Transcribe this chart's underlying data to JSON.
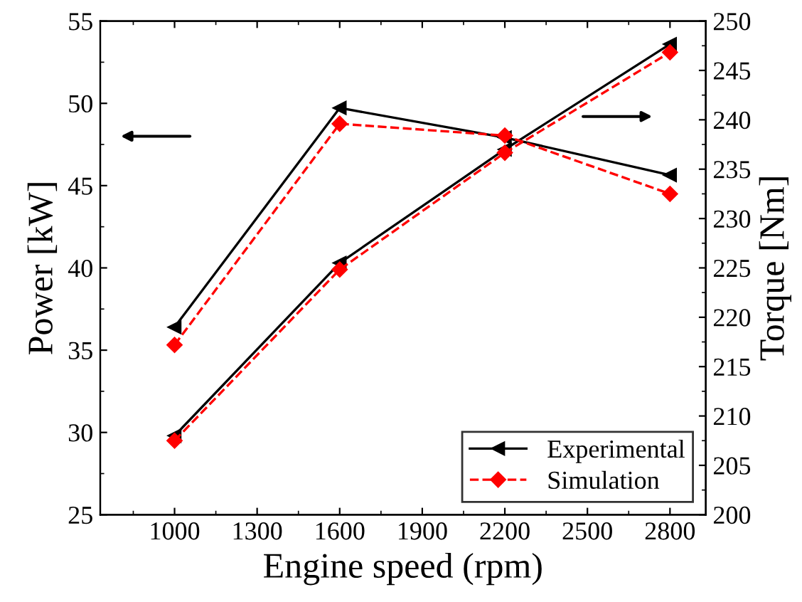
{
  "chart_data": {
    "type": "line",
    "xlabel": "Engine speed (rpm)",
    "ylabel": "Power [kW]",
    "y2label": "Torque [Nm]",
    "x": [
      1000,
      1600,
      2200,
      2800
    ],
    "series": [
      {
        "name": "Experimental",
        "color": "#000000",
        "values": [
          29.8,
          40.3,
          47.2,
          53.6
        ],
        "marker": "triangle",
        "line_style": "solid"
      },
      {
        "name": "Simulation",
        "color": "#ff0000",
        "values": [
          29.5,
          39.9,
          47.0,
          53.1
        ],
        "marker": "diamond",
        "line_style": "dashed"
      },
      {
        "color": "#000000",
        "values": [
          219.0,
          241.2,
          238.2,
          234.4
        ],
        "marker": "triangle",
        "line_style": "solid",
        "axis": "y2"
      },
      {
        "color": "#ff0000",
        "values": [
          217.2,
          239.6,
          238.4,
          232.5
        ],
        "marker": "diamond",
        "line_style": "dashed",
        "axis": "y2"
      }
    ],
    "xlim": [
      730,
      2930
    ],
    "xticks": [
      1000,
      1300,
      1600,
      1900,
      2200,
      2500,
      2800
    ],
    "ylim": [
      25,
      55
    ],
    "yticks": [
      25,
      30,
      35,
      40,
      45,
      50,
      55
    ],
    "y2lim": [
      200,
      250
    ],
    "y2ticks": [
      200,
      205,
      210,
      215,
      220,
      225,
      230,
      235,
      240,
      245,
      250
    ],
    "grid": false,
    "legend": "bottom right"
  }
}
